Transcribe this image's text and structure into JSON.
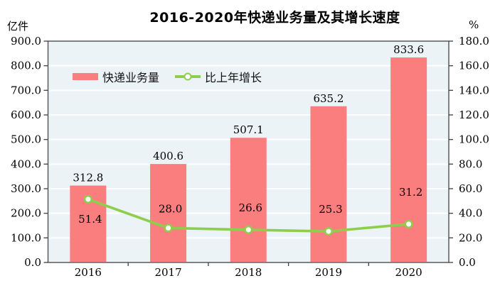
{
  "header": {
    "title": "2016-2020年快递业务量及其增长速度"
  },
  "axes": {
    "left_unit": "亿件",
    "right_unit": "%"
  },
  "legend": [
    {
      "label": "快递业务量",
      "type": "bar",
      "color": "#FB7E7E"
    },
    {
      "label": "比上年增长",
      "type": "line",
      "color": "#8FCE4D"
    }
  ],
  "chart_data": {
    "type": "bar",
    "title": "2016-2020年快递业务量及其增长速度",
    "categories": [
      "2016",
      "2017",
      "2018",
      "2019",
      "2020"
    ],
    "series": [
      {
        "name": "快递业务量",
        "type": "bar",
        "axis": "left",
        "unit": "亿件",
        "color": "#FB7E7E",
        "values": [
          312.8,
          400.6,
          507.1,
          635.2,
          833.6
        ]
      },
      {
        "name": "比上年增长",
        "type": "line",
        "axis": "right",
        "unit": "%",
        "color": "#8FCE4D",
        "marker_fill": "#FFFFFF",
        "values": [
          51.4,
          28.0,
          26.6,
          25.3,
          31.2
        ]
      }
    ],
    "y_left": {
      "label": "亿件",
      "min": 0,
      "max": 900,
      "step": 100
    },
    "y_right": {
      "label": "%",
      "min": 0,
      "max": 180,
      "step": 20
    },
    "grid": true,
    "gridline_color": "#FFFFFF",
    "plot_background": "#ECF3F7",
    "plot_border_color": "#5A5A5A",
    "tick_color": "#404040",
    "label_color": "#000000",
    "legend_position": "top-left-inside"
  }
}
